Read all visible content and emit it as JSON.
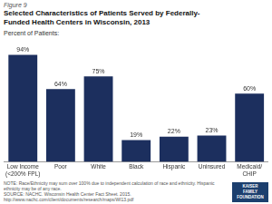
{
  "chart_data": {
    "type": "bar",
    "title": "Selected Characteristics of Patients Served by Federally-\nFunded Health Centers in Wisconsin, 2013",
    "subtitle": "Percent of Patients:",
    "categories": [
      "Low Income\n(<200% FPL)",
      "Poor",
      "White",
      "Black",
      "Hispanic",
      "Uninsured",
      "Medicaid/\nCHIP"
    ],
    "values": [
      94,
      64,
      75,
      19,
      22,
      23,
      60
    ],
    "value_labels": [
      "94%",
      "64%",
      "75%",
      "19%",
      "22%",
      "23%",
      "60%"
    ],
    "data_labels": true,
    "color": "#1c2f5e",
    "ylim": [
      0,
      108
    ],
    "tick_labels": "x",
    "grid": false,
    "annotations": [
      "Figure 9",
      "NOTE: Race/Ethnicity may sum over 100% due to independent calculation of race and ethnicity. Hispanic ethnicity may be of any race.",
      "SOURCE: NACHC. Wisconsin Health Center Fact Sheet. 2015. http://www.nachc.com/client/documents/research/maps/WI13.pdf",
      "KAISER",
      "FAMILY",
      "FOUNDATION"
    ]
  }
}
